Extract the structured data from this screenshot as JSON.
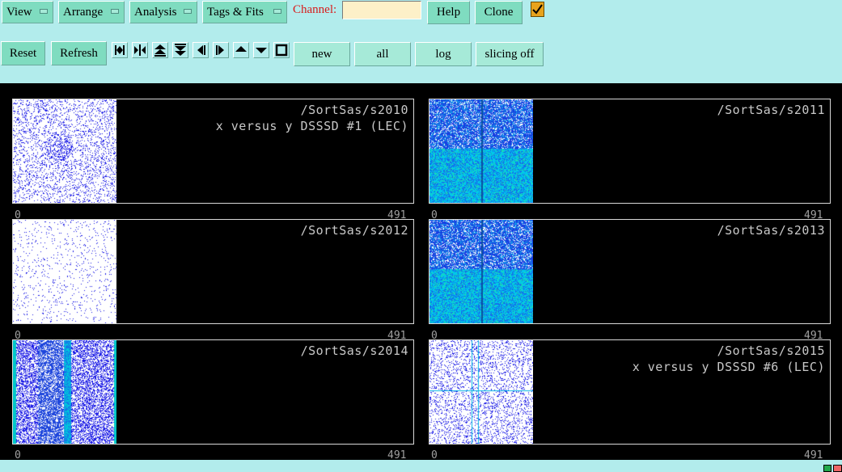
{
  "menus": [
    "View",
    "Arrange",
    "Analysis",
    "Tags & Fits"
  ],
  "channel": {
    "label": "Channel:",
    "value": ""
  },
  "top_buttons": {
    "help": "Help",
    "clone": "Clone"
  },
  "checkbox": {
    "checked": true
  },
  "row2_buttons": {
    "reset": "Reset",
    "refresh": "Refresh"
  },
  "nav_icons": [
    "first-icon",
    "expand-icon",
    "top-icon",
    "bottom-icon",
    "prev-icon",
    "next-icon",
    "up-icon",
    "down-icon",
    "stop-icon"
  ],
  "toggle_buttons": {
    "new": "new",
    "all": "all",
    "log": "log",
    "slicing": "slicing off"
  },
  "panels": [
    {
      "path": "/SortSas/s2010",
      "subtitle": "x versus y DSSSD #1 (LEC)",
      "axis_min": "0",
      "axis_max": "491",
      "style": "sparse-blue"
    },
    {
      "path": "/SortSas/s2011",
      "subtitle": "",
      "axis_min": "0",
      "axis_max": "491",
      "style": "dense-cyan"
    },
    {
      "path": "/SortSas/s2012",
      "subtitle": "",
      "axis_min": "0",
      "axis_max": "491",
      "style": "very-sparse"
    },
    {
      "path": "/SortSas/s2013",
      "subtitle": "",
      "axis_min": "0",
      "axis_max": "491",
      "style": "dense-cyan"
    },
    {
      "path": "/SortSas/s2014",
      "subtitle": "",
      "axis_min": "0",
      "axis_max": "491",
      "style": "medium-blue"
    },
    {
      "path": "/SortSas/s2015",
      "subtitle": "x versus y DSSSD #6 (LEC)",
      "axis_min": "0",
      "axis_max": "491",
      "style": "grid-blue"
    }
  ],
  "colors": {
    "background": "#b2ecec",
    "button": "#7fdcc0",
    "plot_bg": "#000000",
    "accent_red": "#d81c1c"
  }
}
